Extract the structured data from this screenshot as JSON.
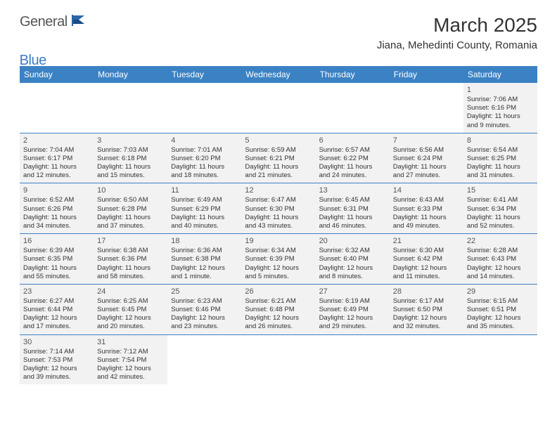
{
  "logo": {
    "general": "General",
    "blue": "Blue"
  },
  "title": "March 2025",
  "location": "Jiana, Mehedinti County, Romania",
  "colors": {
    "header_blue": "#3b82c4",
    "logo_blue": "#3b7dc4",
    "cell_bg": "#f2f2f2",
    "text": "#333333"
  },
  "weekdays": [
    "Sunday",
    "Monday",
    "Tuesday",
    "Wednesday",
    "Thursday",
    "Friday",
    "Saturday"
  ],
  "weeks": [
    [
      null,
      null,
      null,
      null,
      null,
      null,
      {
        "n": "1",
        "sr": "Sunrise: 7:06 AM",
        "ss": "Sunset: 6:16 PM",
        "d1": "Daylight: 11 hours",
        "d2": "and 9 minutes."
      }
    ],
    [
      {
        "n": "2",
        "sr": "Sunrise: 7:04 AM",
        "ss": "Sunset: 6:17 PM",
        "d1": "Daylight: 11 hours",
        "d2": "and 12 minutes."
      },
      {
        "n": "3",
        "sr": "Sunrise: 7:03 AM",
        "ss": "Sunset: 6:18 PM",
        "d1": "Daylight: 11 hours",
        "d2": "and 15 minutes."
      },
      {
        "n": "4",
        "sr": "Sunrise: 7:01 AM",
        "ss": "Sunset: 6:20 PM",
        "d1": "Daylight: 11 hours",
        "d2": "and 18 minutes."
      },
      {
        "n": "5",
        "sr": "Sunrise: 6:59 AM",
        "ss": "Sunset: 6:21 PM",
        "d1": "Daylight: 11 hours",
        "d2": "and 21 minutes."
      },
      {
        "n": "6",
        "sr": "Sunrise: 6:57 AM",
        "ss": "Sunset: 6:22 PM",
        "d1": "Daylight: 11 hours",
        "d2": "and 24 minutes."
      },
      {
        "n": "7",
        "sr": "Sunrise: 6:56 AM",
        "ss": "Sunset: 6:24 PM",
        "d1": "Daylight: 11 hours",
        "d2": "and 27 minutes."
      },
      {
        "n": "8",
        "sr": "Sunrise: 6:54 AM",
        "ss": "Sunset: 6:25 PM",
        "d1": "Daylight: 11 hours",
        "d2": "and 31 minutes."
      }
    ],
    [
      {
        "n": "9",
        "sr": "Sunrise: 6:52 AM",
        "ss": "Sunset: 6:26 PM",
        "d1": "Daylight: 11 hours",
        "d2": "and 34 minutes."
      },
      {
        "n": "10",
        "sr": "Sunrise: 6:50 AM",
        "ss": "Sunset: 6:28 PM",
        "d1": "Daylight: 11 hours",
        "d2": "and 37 minutes."
      },
      {
        "n": "11",
        "sr": "Sunrise: 6:49 AM",
        "ss": "Sunset: 6:29 PM",
        "d1": "Daylight: 11 hours",
        "d2": "and 40 minutes."
      },
      {
        "n": "12",
        "sr": "Sunrise: 6:47 AM",
        "ss": "Sunset: 6:30 PM",
        "d1": "Daylight: 11 hours",
        "d2": "and 43 minutes."
      },
      {
        "n": "13",
        "sr": "Sunrise: 6:45 AM",
        "ss": "Sunset: 6:31 PM",
        "d1": "Daylight: 11 hours",
        "d2": "and 46 minutes."
      },
      {
        "n": "14",
        "sr": "Sunrise: 6:43 AM",
        "ss": "Sunset: 6:33 PM",
        "d1": "Daylight: 11 hours",
        "d2": "and 49 minutes."
      },
      {
        "n": "15",
        "sr": "Sunrise: 6:41 AM",
        "ss": "Sunset: 6:34 PM",
        "d1": "Daylight: 11 hours",
        "d2": "and 52 minutes."
      }
    ],
    [
      {
        "n": "16",
        "sr": "Sunrise: 6:39 AM",
        "ss": "Sunset: 6:35 PM",
        "d1": "Daylight: 11 hours",
        "d2": "and 55 minutes."
      },
      {
        "n": "17",
        "sr": "Sunrise: 6:38 AM",
        "ss": "Sunset: 6:36 PM",
        "d1": "Daylight: 11 hours",
        "d2": "and 58 minutes."
      },
      {
        "n": "18",
        "sr": "Sunrise: 6:36 AM",
        "ss": "Sunset: 6:38 PM",
        "d1": "Daylight: 12 hours",
        "d2": "and 1 minute."
      },
      {
        "n": "19",
        "sr": "Sunrise: 6:34 AM",
        "ss": "Sunset: 6:39 PM",
        "d1": "Daylight: 12 hours",
        "d2": "and 5 minutes."
      },
      {
        "n": "20",
        "sr": "Sunrise: 6:32 AM",
        "ss": "Sunset: 6:40 PM",
        "d1": "Daylight: 12 hours",
        "d2": "and 8 minutes."
      },
      {
        "n": "21",
        "sr": "Sunrise: 6:30 AM",
        "ss": "Sunset: 6:42 PM",
        "d1": "Daylight: 12 hours",
        "d2": "and 11 minutes."
      },
      {
        "n": "22",
        "sr": "Sunrise: 6:28 AM",
        "ss": "Sunset: 6:43 PM",
        "d1": "Daylight: 12 hours",
        "d2": "and 14 minutes."
      }
    ],
    [
      {
        "n": "23",
        "sr": "Sunrise: 6:27 AM",
        "ss": "Sunset: 6:44 PM",
        "d1": "Daylight: 12 hours",
        "d2": "and 17 minutes."
      },
      {
        "n": "24",
        "sr": "Sunrise: 6:25 AM",
        "ss": "Sunset: 6:45 PM",
        "d1": "Daylight: 12 hours",
        "d2": "and 20 minutes."
      },
      {
        "n": "25",
        "sr": "Sunrise: 6:23 AM",
        "ss": "Sunset: 6:46 PM",
        "d1": "Daylight: 12 hours",
        "d2": "and 23 minutes."
      },
      {
        "n": "26",
        "sr": "Sunrise: 6:21 AM",
        "ss": "Sunset: 6:48 PM",
        "d1": "Daylight: 12 hours",
        "d2": "and 26 minutes."
      },
      {
        "n": "27",
        "sr": "Sunrise: 6:19 AM",
        "ss": "Sunset: 6:49 PM",
        "d1": "Daylight: 12 hours",
        "d2": "and 29 minutes."
      },
      {
        "n": "28",
        "sr": "Sunrise: 6:17 AM",
        "ss": "Sunset: 6:50 PM",
        "d1": "Daylight: 12 hours",
        "d2": "and 32 minutes."
      },
      {
        "n": "29",
        "sr": "Sunrise: 6:15 AM",
        "ss": "Sunset: 6:51 PM",
        "d1": "Daylight: 12 hours",
        "d2": "and 35 minutes."
      }
    ],
    [
      {
        "n": "30",
        "sr": "Sunrise: 7:14 AM",
        "ss": "Sunset: 7:53 PM",
        "d1": "Daylight: 12 hours",
        "d2": "and 39 minutes."
      },
      {
        "n": "31",
        "sr": "Sunrise: 7:12 AM",
        "ss": "Sunset: 7:54 PM",
        "d1": "Daylight: 12 hours",
        "d2": "and 42 minutes."
      },
      null,
      null,
      null,
      null,
      null
    ]
  ]
}
